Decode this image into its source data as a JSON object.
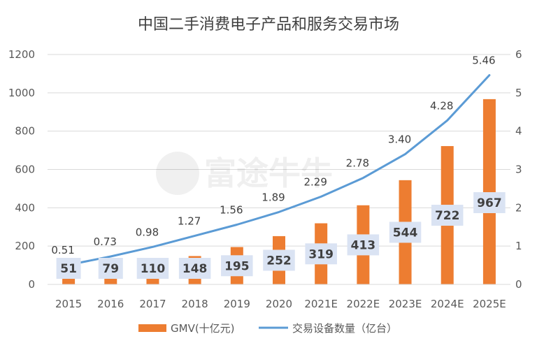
{
  "chart_data": {
    "type": "bar",
    "title": "中国二手消费电子产品和服务交易市场",
    "categories": [
      "2015",
      "2016",
      "2017",
      "2018",
      "2019",
      "2020",
      "2021E",
      "2022E",
      "2023E",
      "2024E",
      "2025E"
    ],
    "series": [
      {
        "name": "GMV(十亿元)",
        "type": "bar",
        "axis": "left",
        "color": "#ED7D31",
        "values": [
          51,
          79,
          110,
          148,
          195,
          252,
          319,
          413,
          544,
          722,
          967
        ],
        "labels": [
          "51",
          "79",
          "110",
          "148",
          "195",
          "252",
          "319",
          "413",
          "544",
          "722",
          "967"
        ]
      },
      {
        "name": "交易设备数量（亿台）",
        "type": "line",
        "axis": "right",
        "color": "#5B9BD5",
        "values": [
          0.51,
          0.73,
          0.98,
          1.27,
          1.56,
          1.89,
          2.29,
          2.78,
          3.4,
          4.28,
          5.46
        ],
        "labels": [
          "0.51",
          "0.73",
          "0.98",
          "1.27",
          "1.56",
          "1.89",
          "2.29",
          "2.78",
          "3.40",
          "4.28",
          "5.46"
        ]
      }
    ],
    "y_left": {
      "min": 0,
      "max": 1200,
      "ticks": [
        "0",
        "200",
        "400",
        "600",
        "800",
        "1000",
        "1200"
      ]
    },
    "y_right": {
      "min": 0,
      "max": 6,
      "ticks": [
        "0",
        "1",
        "2",
        "3",
        "4",
        "5",
        "6"
      ]
    },
    "grid": true,
    "legend_position": "bottom"
  },
  "watermark": "富途牛牛"
}
